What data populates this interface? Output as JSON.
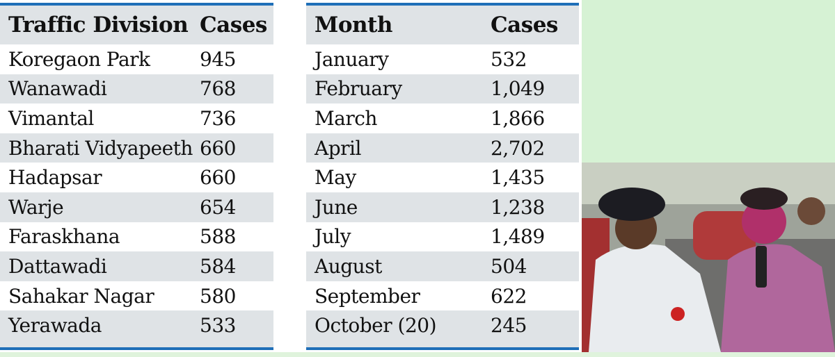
{
  "division_table": {
    "headers": [
      "Traffic Division",
      "Cases"
    ],
    "rows": [
      [
        "Koregaon Park",
        "945"
      ],
      [
        "Wanawadi",
        "768"
      ],
      [
        "Vimantal",
        "736"
      ],
      [
        "Bharati Vidyapeeth",
        "660"
      ],
      [
        "Hadapsar",
        "660"
      ],
      [
        "Warje",
        "654"
      ],
      [
        "Faraskhana",
        "588"
      ],
      [
        "Dattawadi",
        "584"
      ],
      [
        "Sahakar Nagar",
        "580"
      ],
      [
        "Yerawada",
        "533"
      ]
    ]
  },
  "month_table": {
    "headers": [
      "Month",
      "Cases"
    ],
    "rows": [
      [
        "January",
        "532"
      ],
      [
        "February",
        "1,049"
      ],
      [
        "March",
        "1,866"
      ],
      [
        "April",
        "2,702"
      ],
      [
        "May",
        "1,435"
      ],
      [
        "June",
        "1,238"
      ],
      [
        "July",
        "1,489"
      ],
      [
        "August",
        "504"
      ],
      [
        "September",
        "622"
      ],
      [
        "October (20)",
        "245"
      ]
    ]
  },
  "colors": {
    "accent": "#1f6fb8",
    "stripe": "#dfe3e6",
    "background_green": "#d6f2d4"
  }
}
